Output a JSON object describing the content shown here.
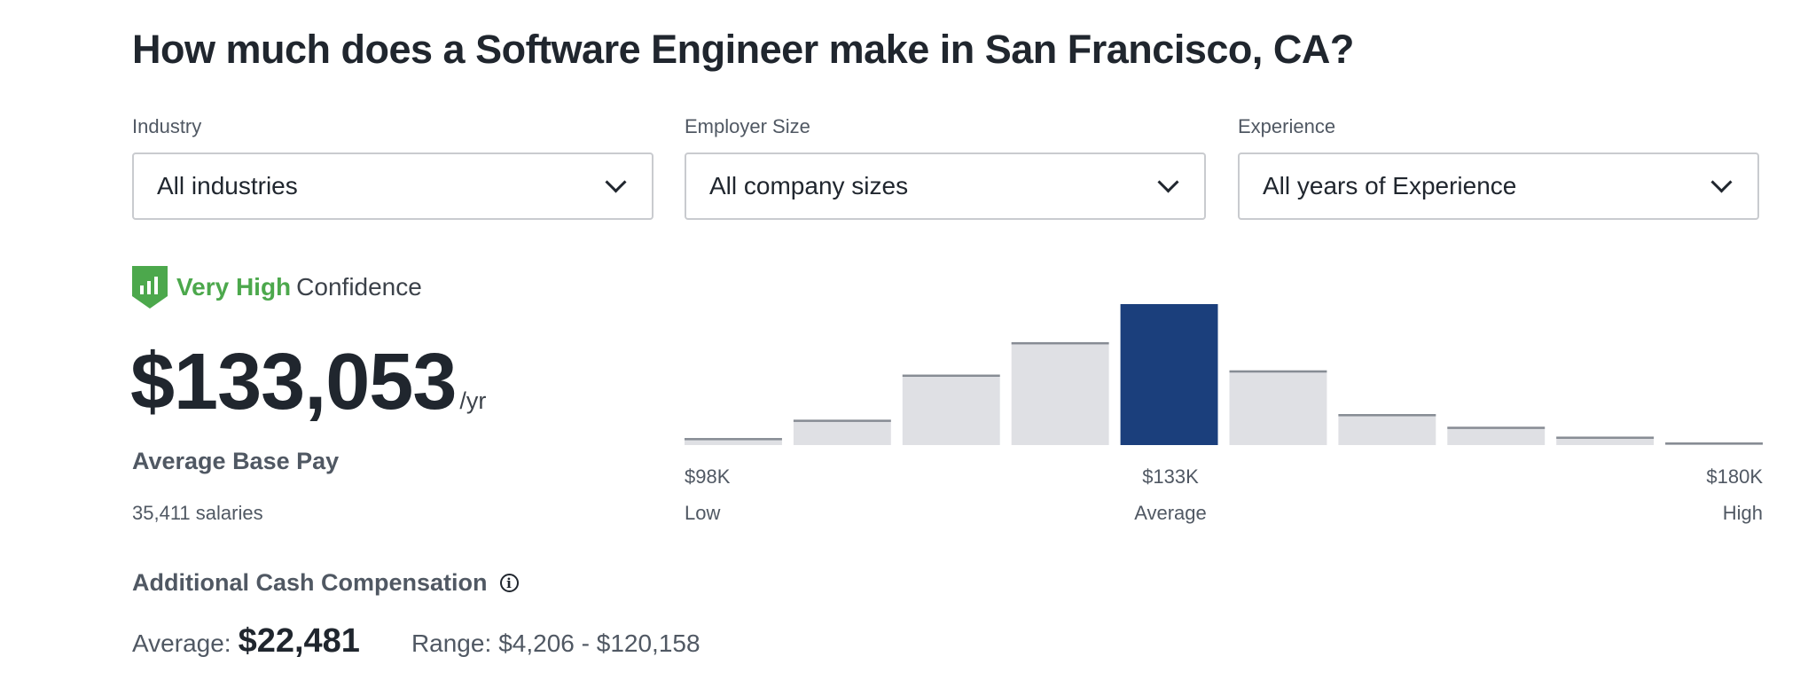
{
  "title": "How much does a Software Engineer make in San Francisco, CA?",
  "filters": [
    {
      "label": "Industry",
      "value": "All industries"
    },
    {
      "label": "Employer Size",
      "value": "All company sizes"
    },
    {
      "label": "Experience",
      "value": "All years of Experience"
    }
  ],
  "confidence": {
    "level": "Very High",
    "suffix": "Confidence",
    "color": "#4ca84c",
    "icon": "shield-bar-chart-icon"
  },
  "pay": {
    "amount": "$133,053",
    "unit": "/yr",
    "label": "Average Base Pay",
    "count": "35,411 salaries"
  },
  "chart_data": {
    "type": "bar",
    "description_values_unit": "relative frequency (% of tallest bar)",
    "values": [
      5,
      18,
      50,
      73,
      100,
      53,
      22,
      13,
      6,
      1
    ],
    "highlight_index": 4,
    "colors": {
      "highlight": "#1b3f7c",
      "bar": "#dfe0e4",
      "bar_top": "#878c94"
    },
    "ticks": [
      {
        "value": "$98K",
        "label": "Low"
      },
      {
        "value": "$133K",
        "label": "Average"
      },
      {
        "value": "$180K",
        "label": "High"
      }
    ]
  },
  "additional": {
    "title": "Additional Cash Compensation",
    "info_icon": "info-icon",
    "average_label": "Average:",
    "average_value": "$22,481",
    "range_label": "Range:",
    "range_value": "$4,206 - $120,158"
  }
}
